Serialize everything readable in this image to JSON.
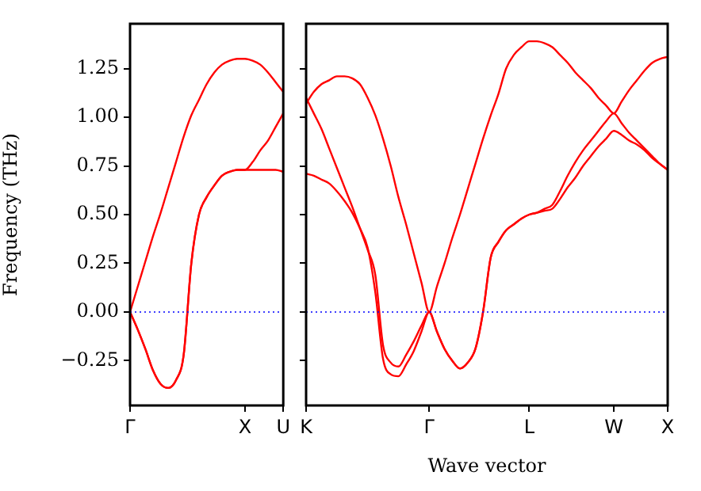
{
  "chart_data": [
    {
      "type": "line",
      "ylabel": "Frequency (THz)",
      "categories": [
        "Γ",
        null,
        null,
        null,
        null,
        null,
        null,
        null,
        null,
        null,
        null,
        null,
        null,
        null,
        null,
        "X",
        null,
        null,
        null,
        null,
        "U"
      ],
      "ylim": [
        -0.48,
        1.48
      ],
      "yticks": [
        {
          "value": -0.25,
          "label": "−0.25"
        },
        {
          "value": 0,
          "label": "0.00"
        },
        {
          "value": 0.25,
          "label": "0.25"
        },
        {
          "value": 0.5,
          "label": "0.50"
        },
        {
          "value": 0.75,
          "label": "0.75"
        },
        {
          "value": 1.0,
          "label": "1.00"
        },
        {
          "value": 1.25,
          "label": "1.25"
        }
      ],
      "grid": false,
      "legend": false,
      "marker": "none",
      "line_style": "solid",
      "ref_lines": [
        {
          "axis": "y",
          "value": 0,
          "color": "#0000ff",
          "line_style": "dotted"
        }
      ],
      "series": [
        {
          "color": "#ff0000",
          "values": [
            0,
            -0.09,
            -0.19,
            -0.3,
            -0.37,
            -0.39,
            -0.35,
            -0.22,
            0.25,
            0.5,
            0.59,
            0.65,
            0.7,
            0.72,
            0.73,
            0.73,
            0.73,
            0.73,
            0.73,
            0.73,
            0.72
          ]
        },
        {
          "color": "#ff0000",
          "values": [
            0,
            -0.09,
            -0.19,
            -0.3,
            -0.37,
            -0.39,
            -0.35,
            -0.22,
            0.25,
            0.5,
            0.59,
            0.65,
            0.7,
            0.72,
            0.73,
            0.73,
            0.77,
            0.83,
            0.88,
            0.95,
            1.02
          ]
        },
        {
          "color": "#ff0000",
          "values": [
            0,
            0.13,
            0.26,
            0.39,
            0.51,
            0.64,
            0.77,
            0.9,
            1.01,
            1.09,
            1.17,
            1.23,
            1.27,
            1.29,
            1.3,
            1.3,
            1.29,
            1.27,
            1.23,
            1.18,
            1.13
          ]
        }
      ]
    },
    {
      "type": "line",
      "xlabel": "Wave vector",
      "categories": [
        "K",
        null,
        null,
        null,
        null,
        null,
        null,
        null,
        null,
        null,
        null,
        null,
        null,
        null,
        null,
        null,
        "Γ",
        null,
        null,
        null,
        null,
        null,
        null,
        null,
        null,
        null,
        null,
        null,
        null,
        "L",
        null,
        null,
        null,
        null,
        null,
        null,
        null,
        null,
        null,
        null,
        "W",
        null,
        null,
        null,
        null,
        null,
        null,
        "X"
      ],
      "ylim": [
        -0.48,
        1.48
      ],
      "yticks": [
        {
          "value": -0.25,
          "label": null
        },
        {
          "value": 0,
          "label": null
        },
        {
          "value": 0.25,
          "label": null
        },
        {
          "value": 0.5,
          "label": null
        },
        {
          "value": 0.75,
          "label": null
        },
        {
          "value": 1.0,
          "label": null
        },
        {
          "value": 1.25,
          "label": null
        }
      ],
      "tick_labels": "x",
      "grid": false,
      "legend": false,
      "marker": "none",
      "line_style": "solid",
      "ref_lines": [
        {
          "axis": "y",
          "value": 0,
          "color": "#0000ff",
          "line_style": "dotted"
        }
      ],
      "series": [
        {
          "color": "#ff0000",
          "values": [
            1.07,
            1.13,
            1.17,
            1.19,
            1.21,
            1.21,
            1.2,
            1.17,
            1.1,
            1.01,
            0.89,
            0.75,
            0.59,
            0.45,
            0.3,
            0.15,
            0,
            0.13,
            0.25,
            0.38,
            0.5,
            0.63,
            0.76,
            0.89,
            1.01,
            1.12,
            1.25,
            1.32,
            1.36,
            1.39,
            1.39,
            1.38,
            1.36,
            1.32,
            1.28,
            1.23,
            1.19,
            1.15,
            1.1,
            1.06,
            1.02,
            1.08,
            1.14,
            1.19,
            1.24,
            1.28,
            1.3,
            1.31
          ]
        },
        {
          "color": "#ff0000",
          "values": [
            1.1,
            1.02,
            0.94,
            0.84,
            0.74,
            0.64,
            0.54,
            0.43,
            0.32,
            0.19,
            -0.17,
            -0.26,
            -0.28,
            -0.22,
            -0.15,
            -0.07,
            0,
            -0.1,
            -0.19,
            -0.25,
            -0.29,
            -0.26,
            -0.19,
            0,
            0.28,
            0.36,
            0.42,
            0.45,
            0.48,
            0.5,
            0.51,
            0.53,
            0.55,
            0.62,
            0.7,
            0.77,
            0.83,
            0.88,
            0.93,
            0.98,
            1.02,
            0.97,
            0.92,
            0.88,
            0.84,
            0.8,
            0.76,
            0.73
          ]
        },
        {
          "color": "#ff0000",
          "values": [
            0.71,
            0.7,
            0.68,
            0.66,
            0.62,
            0.57,
            0.51,
            0.43,
            0.33,
            0.1,
            -0.24,
            -0.32,
            -0.33,
            -0.27,
            -0.2,
            -0.1,
            0,
            -0.1,
            -0.19,
            -0.25,
            -0.29,
            -0.26,
            -0.19,
            0,
            0.28,
            0.36,
            0.42,
            0.45,
            0.48,
            0.5,
            0.51,
            0.52,
            0.53,
            0.58,
            0.64,
            0.69,
            0.75,
            0.8,
            0.85,
            0.89,
            0.93,
            0.91,
            0.88,
            0.86,
            0.83,
            0.79,
            0.76,
            0.73
          ]
        }
      ]
    }
  ]
}
